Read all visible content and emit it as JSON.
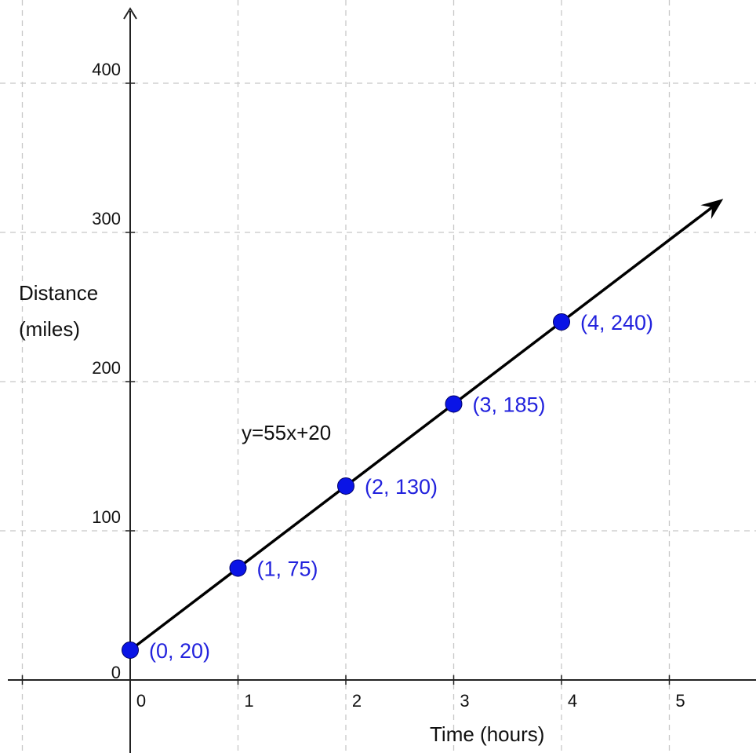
{
  "chart_data": {
    "type": "line",
    "xlabel": "Time (hours)",
    "ylabel_lines": [
      "Distance",
      "(miles)"
    ],
    "equation": "y=55x+20",
    "x_ticks": [
      "0",
      "1",
      "2",
      "3",
      "4",
      "5"
    ],
    "y_ticks": [
      "0",
      "100",
      "200",
      "300",
      "400"
    ],
    "xlim": [
      -1,
      5.8
    ],
    "ylim": [
      -50,
      460
    ],
    "grid": true,
    "grid_style": "dashed",
    "series": [
      {
        "slope": 55,
        "intercept": 20,
        "x_range": [
          0,
          5.5
        ],
        "arrow": true
      }
    ],
    "points": [
      {
        "x": 0,
        "y": 20,
        "label": "(0, 20)"
      },
      {
        "x": 1,
        "y": 75,
        "label": "(1, 75)"
      },
      {
        "x": 2,
        "y": 130,
        "label": "(2, 130)"
      },
      {
        "x": 3,
        "y": 185,
        "label": "(3, 185)"
      },
      {
        "x": 4,
        "y": 240,
        "label": "(4, 240)"
      }
    ],
    "colors": {
      "point": "#0a14e6",
      "label": "#2222dd",
      "line": "#000000",
      "grid": "#c8c8c8",
      "axis": "#222222"
    }
  }
}
